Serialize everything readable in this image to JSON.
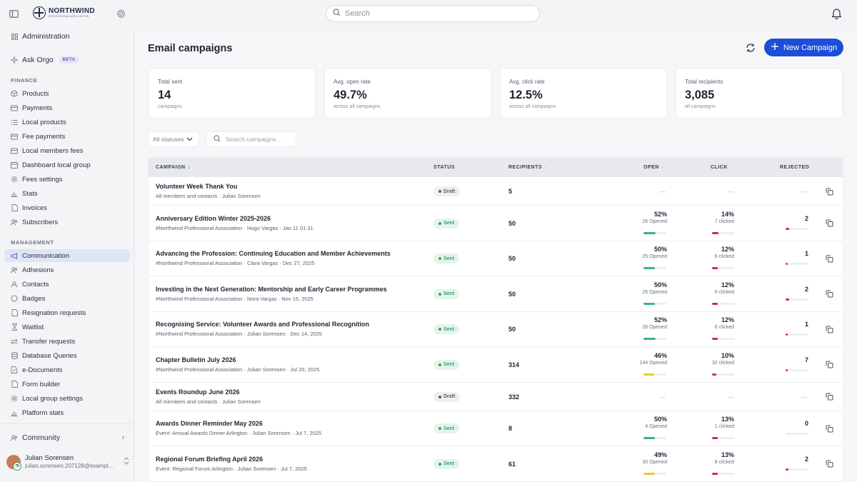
{
  "app": {
    "logo_name": "NORTHWIND",
    "logo_sub": "PROFESSIONAL ASSOCIATION",
    "search_placeholder": "Search"
  },
  "sidebar": {
    "administration": "Administration",
    "ask_orgo": "Ask Orgo",
    "beta": "BETA",
    "finance_label": "FINANCE",
    "finance_items": [
      "Products",
      "Payments",
      "Local products",
      "Fee payments",
      "Local members fees",
      "Dashboard local group",
      "Fees settings",
      "Stats",
      "Invoices",
      "Subscribers"
    ],
    "management_label": "MANAGEMENT",
    "management_items": [
      "Communication",
      "Adhesions",
      "Contacts",
      "Badges",
      "Resignation requests",
      "Waitlist",
      "Transfer requests",
      "Database Queries",
      "e-Documents",
      "Form builder",
      "Local group settings",
      "Platform stats"
    ],
    "active_item": "Communication",
    "community": "Community",
    "user": {
      "name": "Julian Sorensen",
      "email": "julian.sorensen.207128@example.com",
      "badge": "75"
    }
  },
  "main": {
    "title": "Email campaigns",
    "new_button": "New Campaign",
    "stats": [
      {
        "label": "Total sent",
        "value": "14",
        "sub": "campaigns"
      },
      {
        "label": "Avg. open rate",
        "value": "49.7%",
        "sub": "across all campaigns"
      },
      {
        "label": "Avg. click rate",
        "value": "12.5%",
        "sub": "across all campaigns"
      },
      {
        "label": "Total recipients",
        "value": "3,085",
        "sub": "all campaigns"
      }
    ],
    "filter_status": "All statuses",
    "filter_search_placeholder": "Search campaigns...",
    "columns": {
      "campaign": "CAMPAIGN",
      "status": "STATUS",
      "recipients": "RECIPIENTS",
      "open": "OPEN",
      "click": "CLICK",
      "rejected": "REJECTED"
    },
    "rows": [
      {
        "title": "Volunteer Week Thank You",
        "meta": "All members and contacts · Julian Sorensen",
        "status": "Draft",
        "recipients": "5",
        "open": "—",
        "click": "—",
        "rejected": "—"
      },
      {
        "title": "Anniversary Edition Winter 2025-2026",
        "meta": "#Northwind Professional Association · Hugo Vargas · Jan 11 01:31",
        "status": "Sent",
        "recipients": "50",
        "open_pct": "52%",
        "open_sub": "26 Opened",
        "open_rate": 52,
        "open_color": "#3bb67a",
        "click_pct": "14%",
        "click_sub": "7 clicked",
        "click_rate": 14,
        "rejected": "2",
        "rej_rate": 4
      },
      {
        "title": "Advancing the Profession: Continuing Education and Member Achievements",
        "meta": "#Northwind Professional Association · Clara Vargas · Dec 27, 2025",
        "status": "Sent",
        "recipients": "50",
        "open_pct": "50%",
        "open_sub": "25 Opened",
        "open_rate": 50,
        "open_color": "#3bb67a",
        "click_pct": "12%",
        "click_sub": "6 clicked",
        "click_rate": 12,
        "rejected": "1",
        "rej_rate": 2
      },
      {
        "title": "Investing in the Next Generation: Mentorship and Early Career Programmes",
        "meta": "#Northwind Professional Association · Nora Vargas · Nov 15, 2025",
        "status": "Sent",
        "recipients": "50",
        "open_pct": "50%",
        "open_sub": "25 Opened",
        "open_rate": 50,
        "open_color": "#3bb67a",
        "click_pct": "12%",
        "click_sub": "6 clicked",
        "click_rate": 12,
        "rejected": "2",
        "rej_rate": 4
      },
      {
        "title": "Recognising Service: Volunteer Awards and Professional Recognition",
        "meta": "#Northwind Professional Association · Julian Sorensen · Dec 14, 2025",
        "status": "Sent",
        "recipients": "50",
        "open_pct": "52%",
        "open_sub": "26 Opened",
        "open_rate": 52,
        "open_color": "#3bb67a",
        "click_pct": "12%",
        "click_sub": "6 clicked",
        "click_rate": 12,
        "rejected": "1",
        "rej_rate": 2
      },
      {
        "title": "Chapter Bulletin July 2026",
        "meta": "#Northwind Professional Association · Julian Sorensen · Jul 20, 2025",
        "status": "Sent",
        "recipients": "314",
        "open_pct": "46%",
        "open_sub": "144 Opened",
        "open_rate": 46,
        "open_color": "#f0c43a",
        "click_pct": "10%",
        "click_sub": "32 clicked",
        "click_rate": 10,
        "rejected": "7",
        "rej_rate": 2
      },
      {
        "title": "Events Roundup June 2026",
        "meta": "All members and contacts · Julian Sorensen",
        "status": "Draft",
        "recipients": "332",
        "open": "—",
        "click": "—",
        "rejected": "—"
      },
      {
        "title": "Awards Dinner Reminder May 2026",
        "meta": "Event: Annual Awards Dinner Arlington · Julian Sorensen · Jul 7, 2025",
        "status": "Sent",
        "recipients": "8",
        "open_pct": "50%",
        "open_sub": "4 Opened",
        "open_rate": 50,
        "open_color": "#3bb67a",
        "click_pct": "13%",
        "click_sub": "1 clicked",
        "click_rate": 13,
        "rejected": "0",
        "rej_rate": 0
      },
      {
        "title": "Regional Forum Briefing April 2026",
        "meta": "Event: Regional Forum Arlington · Julian Sorensen · Jul 7, 2025",
        "status": "Sent",
        "recipients": "61",
        "open_pct": "49%",
        "open_sub": "30 Opened",
        "open_rate": 49,
        "open_color": "#f0c43a",
        "click_pct": "13%",
        "click_sub": "8 clicked",
        "click_rate": 13,
        "rejected": "2",
        "rej_rate": 3
      }
    ]
  }
}
